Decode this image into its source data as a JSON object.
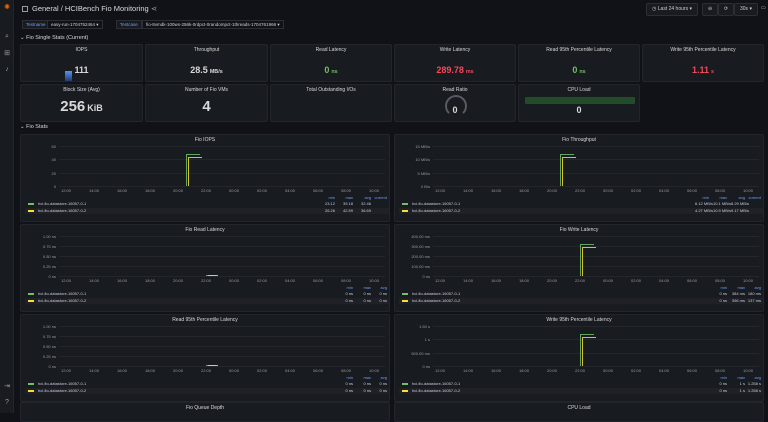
{
  "header": {
    "breadcrumb": "General / HCIBench Fio Monitoring",
    "time_range": "Last 24 hours",
    "refresh": "30s"
  },
  "variables": [
    {
      "label": "Testname",
      "value": "easy-run-1704752464"
    },
    {
      "label": "Testcase",
      "value": "fio-8vmdk-100ws-256k-0rdpct-0randompct-1threads-1704761966"
    }
  ],
  "rows": {
    "single_stats": "Fio Single Stats (Current)",
    "fio_stats": "Fio Stats"
  },
  "stats": [
    {
      "title": "IOPS",
      "value": "111",
      "color": "#d8d9da"
    },
    {
      "title": "Throughput",
      "value": "28.5",
      "unit": "MB/s",
      "color": "#d8d9da"
    },
    {
      "title": "Read Latency",
      "value": "0",
      "unit": "ns",
      "color": "#73bf69"
    },
    {
      "title": "Write Latency",
      "value": "289.78",
      "unit": "ms",
      "color": "#f2495c"
    },
    {
      "title": "Read 95th Percentile Latency",
      "value": "0",
      "unit": "ns",
      "color": "#73bf69"
    },
    {
      "title": "Write 95th Percentile Latency",
      "value": "1.11",
      "unit": "s",
      "color": "#f2495c"
    },
    {
      "title": "Block Size (Avg)",
      "value": "256",
      "unit": "KiB",
      "color": "#d8d9da"
    },
    {
      "title": "Number of Fio VMs",
      "value": "4",
      "color": "#d8d9da"
    },
    {
      "title": "Total Outstanding I/Os",
      "value": "",
      "color": "#d8d9da"
    },
    {
      "title": "Read Ratio",
      "value": "0",
      "color": "#d8d9da"
    },
    {
      "title": "CPU Load",
      "value": "0",
      "color": "#d8d9da"
    }
  ],
  "x_ticks": [
    "12:00",
    "14:00",
    "16:00",
    "18:00",
    "20:00",
    "22:00",
    "00:00",
    "02:00",
    "04:00",
    "06:00",
    "08:00",
    "10:00"
  ],
  "series_names": [
    "hci-fio-datastore-16057-0-1",
    "hci-fio-datastore-16057-0-2"
  ],
  "series_colors": [
    "#73bf69",
    "#fade2a"
  ],
  "charts": [
    {
      "title": "Fio IOPS",
      "yticks": [
        "60",
        "40",
        "20",
        "0"
      ],
      "cols": [
        "min",
        "max",
        "avg",
        "current"
      ],
      "rows": [
        [
          "23.12",
          "39.18",
          "32.46",
          ""
        ],
        [
          "26.26",
          "42.59",
          "36.69",
          ""
        ]
      ]
    },
    {
      "title": "Fio Throughput",
      "yticks": [
        "15 MB/s",
        "10 MB/s",
        "5 MB/s",
        "0 B/s"
      ],
      "cols": [
        "min",
        "max",
        "avg",
        "current"
      ],
      "rows": [
        [
          "6.12 MB/s",
          "10.1 MB/s",
          "8.29 MB/s",
          ""
        ],
        [
          "4.27 MB/s",
          "10.9 MB/s",
          "9.17 MB/s",
          ""
        ]
      ]
    },
    {
      "title": "Fio Read Latency",
      "yticks": [
        "1.00 ns",
        "0.75 ns",
        "0.50 ns",
        "0.25 ns",
        "0 ns"
      ],
      "cols": [
        "min",
        "max",
        "avg"
      ],
      "rows": [
        [
          "0 ns",
          "0 ns",
          "0 ns"
        ],
        [
          "0 ns",
          "0 ns",
          "0 ns"
        ]
      ]
    },
    {
      "title": "Fio Write Latency",
      "yticks": [
        "400.00 ms",
        "300.00 ms",
        "200.00 ms",
        "100.00 ms",
        "0 ns"
      ],
      "cols": [
        "min",
        "max",
        "avg"
      ],
      "rows": [
        [
          "0 ns",
          "384 ms",
          "180 ms"
        ],
        [
          "0 ns",
          "396 ms",
          "137 ms"
        ]
      ]
    },
    {
      "title": "Read 95th Percentile Latency",
      "yticks": [
        "1.00 ns",
        "0.75 ns",
        "0.50 ns",
        "0.25 ns",
        "0 ns"
      ],
      "cols": [
        "min",
        "max",
        "avg"
      ],
      "rows": [
        [
          "0 ns",
          "0 ns",
          "0 ns"
        ],
        [
          "0 ns",
          "0 ns",
          "0 ns"
        ]
      ]
    },
    {
      "title": "Write 95th Percentile Latency",
      "yticks": [
        "1.50 s",
        "1 s",
        "500.00 ms",
        "0 ns"
      ],
      "cols": [
        "min",
        "max",
        "avg"
      ],
      "rows": [
        [
          "0 ns",
          "1 s",
          "1.258 s"
        ],
        [
          "0 ns",
          "1 s",
          "1.258 s"
        ]
      ]
    },
    {
      "title": "Fio Queue Depth"
    },
    {
      "title": "CPU Load"
    }
  ]
}
